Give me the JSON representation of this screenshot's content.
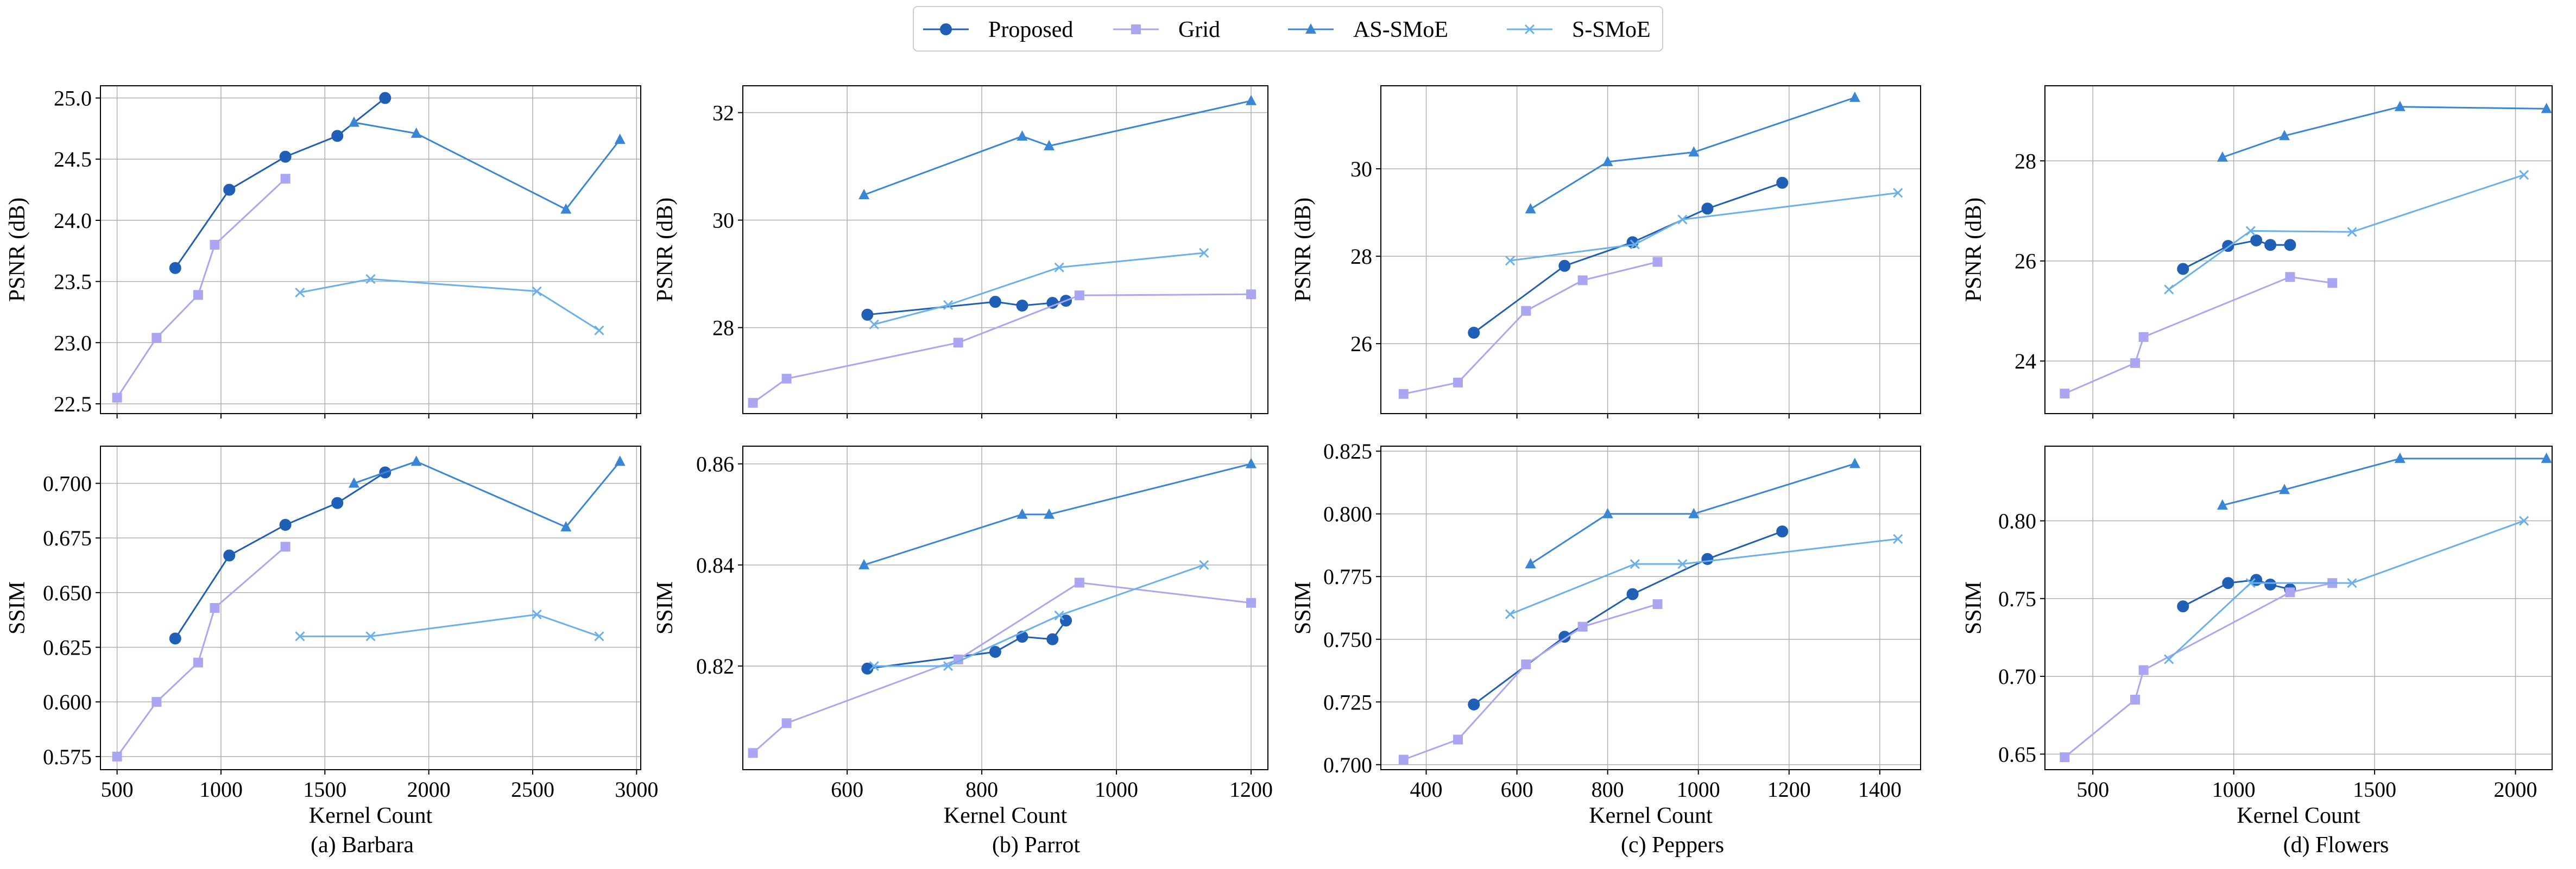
{
  "legend": {
    "entries": [
      {
        "name": "Proposed",
        "color": "#1f5fb5",
        "marker": "circle"
      },
      {
        "name": "Grid",
        "color": "#aaa6f2",
        "marker": "square"
      },
      {
        "name": "AS-SMoE",
        "color": "#3a86d6",
        "marker": "triangle"
      },
      {
        "name": "S-SMoE",
        "color": "#6ab0ea",
        "marker": "x"
      }
    ]
  },
  "chart_data": [
    {
      "type": "line",
      "panel": "barbara-psnr",
      "title": "",
      "xlabel": "",
      "ylabel": "PSNR (dB)",
      "xlim": [
        420,
        3020
      ],
      "ylim": [
        22.42,
        25.1
      ],
      "xticks": [
        500,
        1000,
        1500,
        2000,
        2500,
        3000
      ],
      "yticks": [
        22.5,
        23.0,
        23.5,
        24.0,
        24.5,
        25.0
      ],
      "xtick_labels": [],
      "ytick_labels": [
        "22.5",
        "23.0",
        "23.5",
        "24.0",
        "24.5",
        "25.0"
      ],
      "series": [
        {
          "name": "Proposed",
          "x": [
            780,
            1040,
            1310,
            1560,
            1790
          ],
          "y": [
            23.61,
            24.25,
            24.52,
            24.69,
            25.0
          ]
        },
        {
          "name": "Grid",
          "x": [
            500,
            690,
            890,
            970,
            1310
          ],
          "y": [
            22.55,
            23.04,
            23.39,
            23.8,
            24.34
          ]
        },
        {
          "name": "AS-SMoE",
          "x": [
            1640,
            1940,
            2660,
            2920
          ],
          "y": [
            24.8,
            24.71,
            24.09,
            24.66
          ]
        },
        {
          "name": "S-SMoE",
          "x": [
            1380,
            1720,
            2520,
            2820
          ],
          "y": [
            23.41,
            23.52,
            23.42,
            23.1
          ]
        }
      ]
    },
    {
      "type": "line",
      "panel": "parrot-psnr",
      "title": "",
      "xlabel": "",
      "ylabel": "PSNR (dB)",
      "xlim": [
        445,
        1225
      ],
      "ylim": [
        26.4,
        32.5
      ],
      "xticks": [
        600,
        800,
        1000,
        1200
      ],
      "yticks": [
        28,
        30,
        32
      ],
      "xtick_labels": [],
      "ytick_labels": [
        "28",
        "30",
        "32"
      ],
      "series": [
        {
          "name": "Proposed",
          "x": [
            630,
            820,
            860,
            905,
            925
          ],
          "y": [
            28.24,
            28.48,
            28.41,
            28.46,
            28.5
          ]
        },
        {
          "name": "Grid",
          "x": [
            460,
            510,
            765,
            945,
            1200
          ],
          "y": [
            26.6,
            27.05,
            27.72,
            28.6,
            28.62
          ]
        },
        {
          "name": "AS-SMoE",
          "x": [
            625,
            860,
            900,
            1200
          ],
          "y": [
            30.47,
            31.56,
            31.38,
            32.22
          ]
        },
        {
          "name": "S-SMoE",
          "x": [
            640,
            750,
            915,
            1130
          ],
          "y": [
            28.06,
            28.42,
            29.12,
            29.39
          ]
        }
      ]
    },
    {
      "type": "line",
      "panel": "peppers-psnr",
      "title": "",
      "xlabel": "",
      "ylabel": "PSNR (dB)",
      "xlim": [
        300,
        1490
      ],
      "ylim": [
        24.4,
        31.9
      ],
      "xticks": [
        400,
        600,
        800,
        1000,
        1200,
        1400
      ],
      "yticks": [
        26,
        28,
        30
      ],
      "xtick_labels": [],
      "ytick_labels": [
        "26",
        "28",
        "30"
      ],
      "series": [
        {
          "name": "Proposed",
          "x": [
            505,
            705,
            855,
            1020,
            1185
          ],
          "y": [
            26.25,
            27.78,
            28.32,
            29.09,
            29.68
          ]
        },
        {
          "name": "Grid",
          "x": [
            350,
            470,
            620,
            745,
            910
          ],
          "y": [
            24.85,
            25.11,
            26.75,
            27.45,
            27.87
          ]
        },
        {
          "name": "AS-SMoE",
          "x": [
            630,
            800,
            990,
            1345
          ],
          "y": [
            29.08,
            30.16,
            30.38,
            31.63
          ]
        },
        {
          "name": "S-SMoE",
          "x": [
            585,
            860,
            965,
            1440
          ],
          "y": [
            27.9,
            28.27,
            28.84,
            29.45
          ]
        }
      ]
    },
    {
      "type": "line",
      "panel": "flowers-psnr",
      "title": "",
      "xlabel": "",
      "ylabel": "PSNR (dB)",
      "xlim": [
        330,
        2130
      ],
      "ylim": [
        22.95,
        29.5
      ],
      "xticks": [
        500,
        1000,
        1500,
        2000
      ],
      "yticks": [
        24,
        26,
        28
      ],
      "xtick_labels": [],
      "ytick_labels": [
        "24",
        "26",
        "28"
      ],
      "series": [
        {
          "name": "Proposed",
          "x": [
            820,
            980,
            1080,
            1130,
            1200
          ],
          "y": [
            25.84,
            26.3,
            26.41,
            26.32,
            26.32
          ]
        },
        {
          "name": "Grid",
          "x": [
            400,
            650,
            680,
            1200,
            1350
          ],
          "y": [
            23.35,
            23.96,
            24.48,
            25.68,
            25.56
          ]
        },
        {
          "name": "AS-SMoE",
          "x": [
            960,
            1180,
            1590,
            2110
          ],
          "y": [
            28.07,
            28.5,
            29.08,
            29.04
          ]
        },
        {
          "name": "S-SMoE",
          "x": [
            770,
            1060,
            1420,
            2030
          ],
          "y": [
            25.43,
            26.6,
            26.58,
            27.72
          ]
        }
      ]
    },
    {
      "type": "line",
      "panel": "barbara-ssim",
      "title": "",
      "xlabel": "Kernel Count",
      "ylabel": "SSIM",
      "xlim": [
        420,
        3020
      ],
      "ylim": [
        0.569,
        0.717
      ],
      "xticks": [
        500,
        1000,
        1500,
        2000,
        2500,
        3000
      ],
      "yticks": [
        0.575,
        0.6,
        0.625,
        0.65,
        0.675,
        0.7
      ],
      "xtick_labels": [
        "500",
        "1000",
        "1500",
        "2000",
        "2500",
        "3000"
      ],
      "ytick_labels": [
        "0.575",
        "0.600",
        "0.625",
        "0.650",
        "0.675",
        "0.700"
      ],
      "series": [
        {
          "name": "Proposed",
          "x": [
            780,
            1040,
            1310,
            1560,
            1790
          ],
          "y": [
            0.629,
            0.667,
            0.681,
            0.691,
            0.705
          ]
        },
        {
          "name": "Grid",
          "x": [
            500,
            690,
            890,
            970,
            1310
          ],
          "y": [
            0.575,
            0.6,
            0.618,
            0.643,
            0.671
          ]
        },
        {
          "name": "AS-SMoE",
          "x": [
            1640,
            1940,
            2660,
            2920
          ],
          "y": [
            0.7,
            0.71,
            0.68,
            0.71
          ]
        },
        {
          "name": "S-SMoE",
          "x": [
            1380,
            1720,
            2520,
            2820
          ],
          "y": [
            0.63,
            0.63,
            0.64,
            0.63
          ]
        }
      ]
    },
    {
      "type": "line",
      "panel": "parrot-ssim",
      "title": "",
      "xlabel": "Kernel Count",
      "ylabel": "SSIM",
      "xlim": [
        445,
        1225
      ],
      "ylim": [
        0.7995,
        0.8635
      ],
      "xticks": [
        600,
        800,
        1000,
        1200
      ],
      "yticks": [
        0.82,
        0.84,
        0.86
      ],
      "xtick_labels": [
        "600",
        "800",
        "1000",
        "1200"
      ],
      "ytick_labels": [
        "0.82",
        "0.84",
        "0.86"
      ],
      "series": [
        {
          "name": "Proposed",
          "x": [
            630,
            820,
            860,
            905,
            925
          ],
          "y": [
            0.8195,
            0.8228,
            0.8258,
            0.8253,
            0.829
          ]
        },
        {
          "name": "Grid",
          "x": [
            460,
            510,
            765,
            945,
            1200
          ],
          "y": [
            0.8028,
            0.8087,
            0.8213,
            0.8365,
            0.8325
          ]
        },
        {
          "name": "AS-SMoE",
          "x": [
            625,
            860,
            900,
            1200
          ],
          "y": [
            0.84,
            0.85,
            0.85,
            0.86
          ]
        },
        {
          "name": "S-SMoE",
          "x": [
            640,
            750,
            915,
            1130
          ],
          "y": [
            0.82,
            0.82,
            0.83,
            0.84
          ]
        }
      ]
    },
    {
      "type": "line",
      "panel": "peppers-ssim",
      "title": "",
      "xlabel": "Kernel Count",
      "ylabel": "SSIM",
      "xlim": [
        300,
        1490
      ],
      "ylim": [
        0.698,
        0.827
      ],
      "xticks": [
        400,
        600,
        800,
        1000,
        1200,
        1400
      ],
      "yticks": [
        0.7,
        0.725,
        0.75,
        0.775,
        0.8,
        0.825
      ],
      "xtick_labels": [
        "400",
        "600",
        "800",
        "1000",
        "1200",
        "1400"
      ],
      "ytick_labels": [
        "0.700",
        "0.725",
        "0.750",
        "0.775",
        "0.800",
        "0.825"
      ],
      "series": [
        {
          "name": "Proposed",
          "x": [
            505,
            705,
            855,
            1020,
            1185
          ],
          "y": [
            0.724,
            0.751,
            0.768,
            0.782,
            0.793
          ]
        },
        {
          "name": "Grid",
          "x": [
            350,
            470,
            620,
            745,
            910
          ],
          "y": [
            0.702,
            0.71,
            0.74,
            0.755,
            0.764
          ]
        },
        {
          "name": "AS-SMoE",
          "x": [
            630,
            800,
            990,
            1345
          ],
          "y": [
            0.78,
            0.8,
            0.8,
            0.82
          ]
        },
        {
          "name": "S-SMoE",
          "x": [
            585,
            860,
            965,
            1440
          ],
          "y": [
            0.76,
            0.78,
            0.78,
            0.79
          ]
        }
      ]
    },
    {
      "type": "line",
      "panel": "flowers-ssim",
      "title": "",
      "xlabel": "Kernel Count",
      "ylabel": "SSIM",
      "xlim": [
        330,
        2130
      ],
      "ylim": [
        0.64,
        0.848
      ],
      "xticks": [
        500,
        1000,
        1500,
        2000
      ],
      "yticks": [
        0.65,
        0.7,
        0.75,
        0.8
      ],
      "xtick_labels": [
        "500",
        "1000",
        "1500",
        "2000"
      ],
      "ytick_labels": [
        "0.65",
        "0.70",
        "0.75",
        "0.80"
      ],
      "series": [
        {
          "name": "Proposed",
          "x": [
            820,
            980,
            1080,
            1130,
            1200
          ],
          "y": [
            0.745,
            0.76,
            0.762,
            0.759,
            0.756
          ]
        },
        {
          "name": "Grid",
          "x": [
            400,
            650,
            680,
            1200,
            1350
          ],
          "y": [
            0.648,
            0.685,
            0.704,
            0.754,
            0.76
          ]
        },
        {
          "name": "AS-SMoE",
          "x": [
            960,
            1180,
            1590,
            2110
          ],
          "y": [
            0.81,
            0.82,
            0.84,
            0.84
          ]
        },
        {
          "name": "S-SMoE",
          "x": [
            770,
            1060,
            1420,
            2030
          ],
          "y": [
            0.711,
            0.76,
            0.76,
            0.8
          ]
        }
      ]
    }
  ],
  "captions": [
    "(a) Barbara",
    "(b) Parrot",
    "(c) Peppers",
    "(d) Flowers"
  ]
}
